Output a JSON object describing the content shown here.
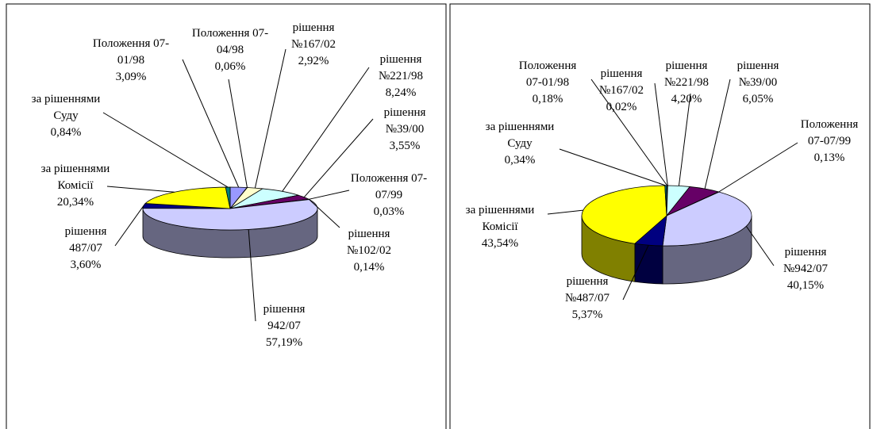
{
  "chart_data": [
    {
      "type": "pie",
      "categories": [
        "Положення 07-01/98",
        "Положення 07-04/98",
        "рішення №167/02",
        "рішення №221/98",
        "рішення №39/00",
        "Положення 07-07/99",
        "рішення №102/02",
        "рішення 942/07",
        "рішення 487/07",
        "за рішеннями Комісії",
        "за рішеннями Суду"
      ],
      "values": [
        3.09,
        0.06,
        2.92,
        8.24,
        3.55,
        0.03,
        0.14,
        57.19,
        3.6,
        20.34,
        0.84
      ],
      "value_labels": [
        "3,09%",
        "0,06%",
        "2,92%",
        "8,24%",
        "3,55%",
        "0,03%",
        "0,14%",
        "57,19%",
        "3,60%",
        "20,34%",
        "0,84%"
      ],
      "colors": [
        "#9999ff",
        "#993366",
        "#ffffcc",
        "#ccffff",
        "#660066",
        "#ff8080",
        "#0066cc",
        "#ccccff",
        "#000080",
        "#ffff00",
        "#008080"
      ]
    },
    {
      "type": "pie",
      "categories": [
        "Положення 07-01/98",
        "рішення №167/02",
        "рішення №221/98",
        "рішення №39/00",
        "Положення 07-07/99",
        "рішення №942/07",
        "рішення №487/07",
        "за рішеннями Комісії",
        "за рішеннями Суду"
      ],
      "values": [
        0.18,
        0.02,
        4.2,
        6.05,
        0.13,
        40.15,
        5.37,
        43.54,
        0.34
      ],
      "value_labels": [
        "0,18%",
        "0,02%",
        "4,20%",
        "6,05%",
        "0,13%",
        "40,15%",
        "5,37%",
        "43,54%",
        "0,34%"
      ],
      "colors": [
        "#9999ff",
        "#993366",
        "#ccffff",
        "#660066",
        "#ff8080",
        "#ccccff",
        "#000080",
        "#ffff00",
        "#008080"
      ]
    }
  ]
}
